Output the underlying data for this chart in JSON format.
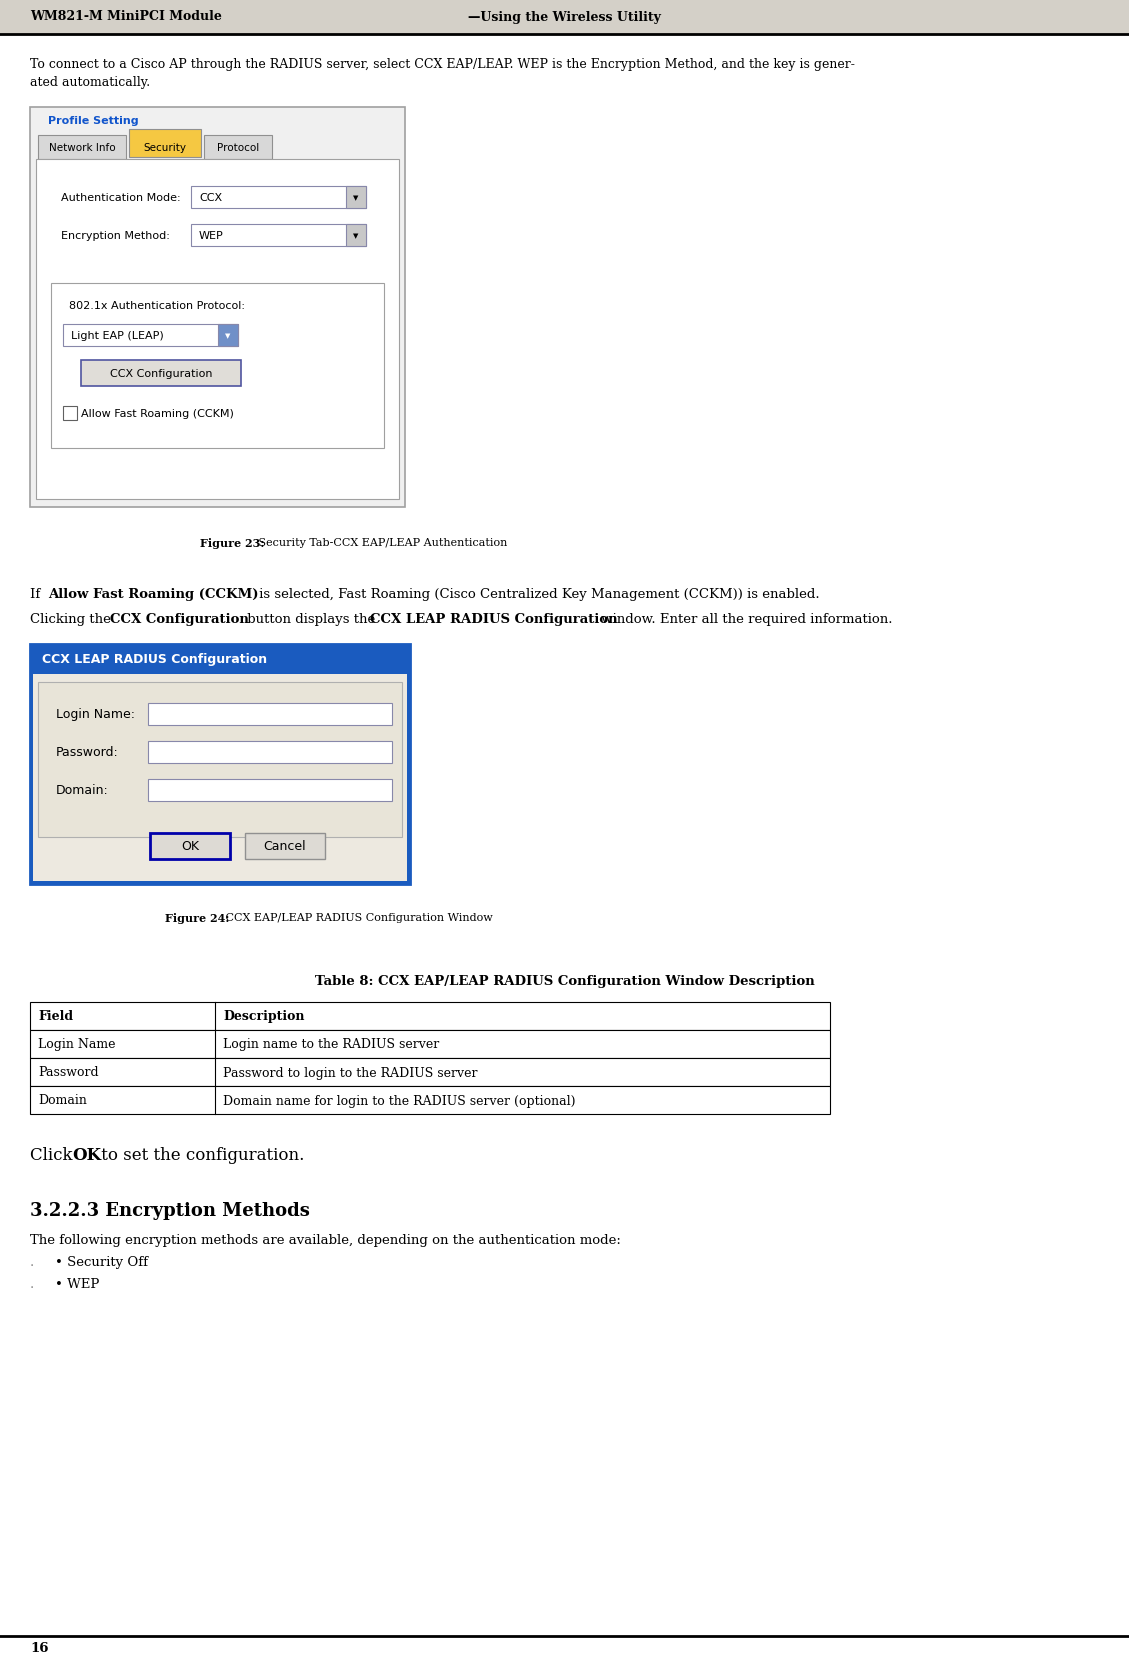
{
  "page_width": 11.29,
  "page_height": 16.65,
  "bg_color": "#ffffff",
  "header_bg": "#d4d0c8",
  "header_left": "WM821-M MiniPCI Module",
  "header_right": "—Using the Wireless Utility",
  "footer_text": "16",
  "para1_line1": "To connect to a Cisco AP through the RADIUS server, select CCX EAP/LEAP. WEP is the Encryption Method, and the key is gener-",
  "para1_line2": "ated automatically.",
  "fig23_caption_bold": "Figure 23:",
  "fig23_caption_rest": " Security Tab-CCX EAP/LEAP Authentication",
  "fig24_caption_bold": "Figure 24:",
  "fig24_caption_rest": " CCX EAP/LEAP RADIUS Configuration Window",
  "table_title": "Table 8: CCX EAP/LEAP RADIUS Configuration Window Description",
  "table_headers": [
    "Field",
    "Description"
  ],
  "table_rows": [
    [
      "Login Name",
      "Login name to the RADIUS server"
    ],
    [
      "Password",
      "Password to login to the RADIUS server"
    ],
    [
      "Domain",
      "Domain name for login to the RADIUS server (optional)"
    ]
  ],
  "section_title": "3.2.2.3 Encryption Methods",
  "section_body": "The following encryption methods are available, depending on the authentication mode:",
  "bullet1": "• Security Off",
  "bullet2": "• WEP",
  "profile_setting_color": "#1155cc",
  "tab_selected_bg": "#f5c842",
  "tab_unselected_bg": "#e8e8e8",
  "dialog_bg": "#f0eeea",
  "dialog_border": "#7a7a9a",
  "ccx_header_bg": "#1a5bbf",
  "ccx_header_text": "#ffffff",
  "input_bg": "#ffffff",
  "button_bg": "#e0ddd8",
  "ok_border": "#0000aa"
}
